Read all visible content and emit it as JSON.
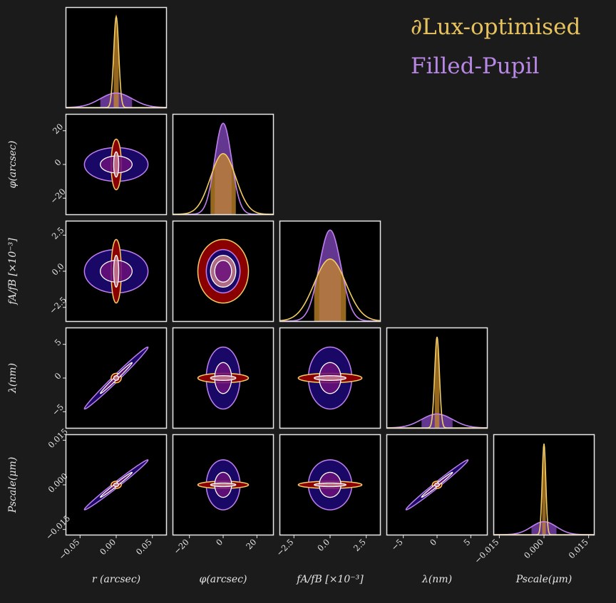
{
  "legend": {
    "lux_label": "∂Lux-optimised",
    "pupil_label": "Filled-Pupil"
  },
  "colors": {
    "background": "#1b1b1b",
    "panel": "#000000",
    "frame": "#e8e8e8",
    "lux_line": "#f3cd62",
    "lux_fill_outer": "#8a0000",
    "lux_fill_inner": "#c97c8a",
    "pupil_line": "#c07ff0",
    "pupil_fill_outer": "#1a0866",
    "pupil_fill_inner": "#6a0f7a",
    "lux_hist_fill": "#c88a2a",
    "pupil_hist_fill": "#6e3ca0",
    "overlap_fill": "#c08090"
  },
  "chart_data": {
    "type": "corner",
    "parameters": [
      {
        "key": "r",
        "label": "r (arcsec)",
        "ylabel": "",
        "range": [
          -0.07,
          0.07
        ],
        "ticks": [
          -0.05,
          0.0,
          0.05
        ],
        "tick_labels": [
          "−0.05",
          "0.00",
          "0.05"
        ],
        "sigma_lux": 0.0035,
        "sigma_pupil": 0.022
      },
      {
        "key": "phi",
        "label": "φ(arcsec)",
        "ylabel": "φ(arcsec)",
        "range": [
          -30,
          30
        ],
        "ticks": [
          -20,
          0,
          20
        ],
        "tick_labels": [
          "−20",
          "0",
          "20"
        ],
        "sigma_lux": 7.5,
        "sigma_pupil": 5.0
      },
      {
        "key": "fAB",
        "label": "fA/fB [×10⁻³]",
        "ylabel": "fA/fB [×10⁻³]",
        "range": [
          -3.5,
          3.5
        ],
        "ticks": [
          -2.5,
          0.0,
          2.5
        ],
        "tick_labels": [
          "−2.5",
          "0.0",
          "2.5"
        ],
        "sigma_lux": 1.1,
        "sigma_pupil": 0.75
      },
      {
        "key": "lambda",
        "label": "λ(nm)",
        "ylabel": "λ(nm)",
        "range": [
          -7.5,
          7.5
        ],
        "ticks": [
          -5,
          0,
          5
        ],
        "tick_labels": [
          "−5",
          "0",
          "5"
        ],
        "sigma_lux": 0.35,
        "sigma_pupil": 2.3
      },
      {
        "key": "pscale",
        "label": "Pscale(μm)",
        "ylabel": "Pscale(μm)",
        "range": [
          -0.017,
          0.017
        ],
        "ticks": [
          -0.015,
          0.0,
          0.015
        ],
        "tick_labels": [
          "−0.015",
          "0.000",
          "0.015"
        ],
        "sigma_lux": 0.0006,
        "sigma_pupil": 0.0042
      }
    ],
    "correlations": {
      "lux": {
        "r|lambda": 0.0,
        "r|pscale": 0.0,
        "lambda|pscale": 0.0
      },
      "pupil": {
        "r|lambda": 0.99,
        "r|pscale": 0.99,
        "lambda|pscale": 0.99
      }
    },
    "contour_levels_sigma": [
      1,
      2
    ],
    "grid": false,
    "legend_position": "top-right"
  }
}
